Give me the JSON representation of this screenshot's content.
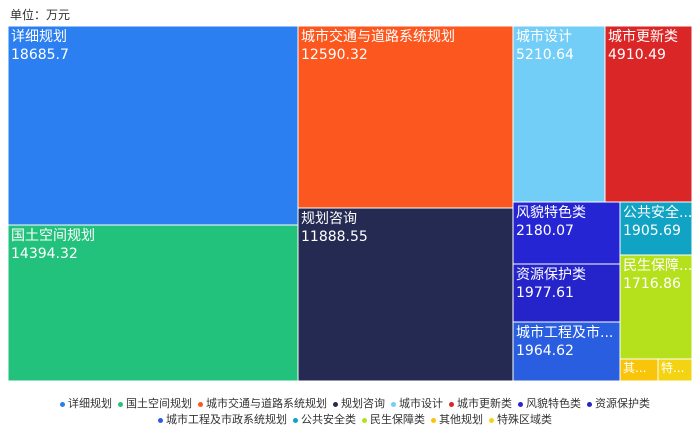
{
  "unit_label": "单位：万元",
  "chart_data": {
    "type": "treemap",
    "title": "",
    "unit": "万元",
    "items": [
      {
        "name": "详细规划",
        "value": 18685.7,
        "value_label": "18685.7",
        "color": "#2b7ff0"
      },
      {
        "name": "国土空间规划",
        "value": 14394.32,
        "value_label": "14394.32",
        "color": "#22c27c"
      },
      {
        "name": "城市交通与道路系统规划",
        "value": 12590.32,
        "value_label": "12590.32",
        "color": "#fc571e"
      },
      {
        "name": "规划咨询",
        "value": 11888.55,
        "value_label": "11888.55",
        "color": "#242a52"
      },
      {
        "name": "城市设计",
        "value": 5210.64,
        "value_label": "5210.64",
        "color": "#72cdf7"
      },
      {
        "name": "城市更新类",
        "value": 4910.49,
        "value_label": "4910.49",
        "color": "#da2626"
      },
      {
        "name": "风貌特色类",
        "value": 2180.07,
        "value_label": "2180.07",
        "color": "#2525d4"
      },
      {
        "name": "资源保护类",
        "value": 1977.61,
        "value_label": "1977.61",
        "color": "#2424ca"
      },
      {
        "name": "城市工程及市政系统规划",
        "value": 1964.62,
        "value_label": "1964.62",
        "color": "#2a5ee0"
      },
      {
        "name": "公共安全类",
        "value": 1905.69,
        "value_label": "1905.69",
        "color": "#10a3c3"
      },
      {
        "name": "民生保障类",
        "value": 1716.86,
        "value_label": "1716.86",
        "color": "#b5e01c"
      },
      {
        "name": "其他规划",
        "value": null,
        "value_label": "",
        "color": "#f9c50a"
      },
      {
        "name": "特殊区域类",
        "value": null,
        "value_label": "",
        "color": "#f4d313"
      }
    ],
    "tile_labels": {
      "城市工程及市政系统规划": "城市工程及市...",
      "公共安全类": "公共安全...",
      "民生保障类": "民生保障...",
      "其他规划": "其...",
      "特殊区域类": "特..."
    }
  }
}
